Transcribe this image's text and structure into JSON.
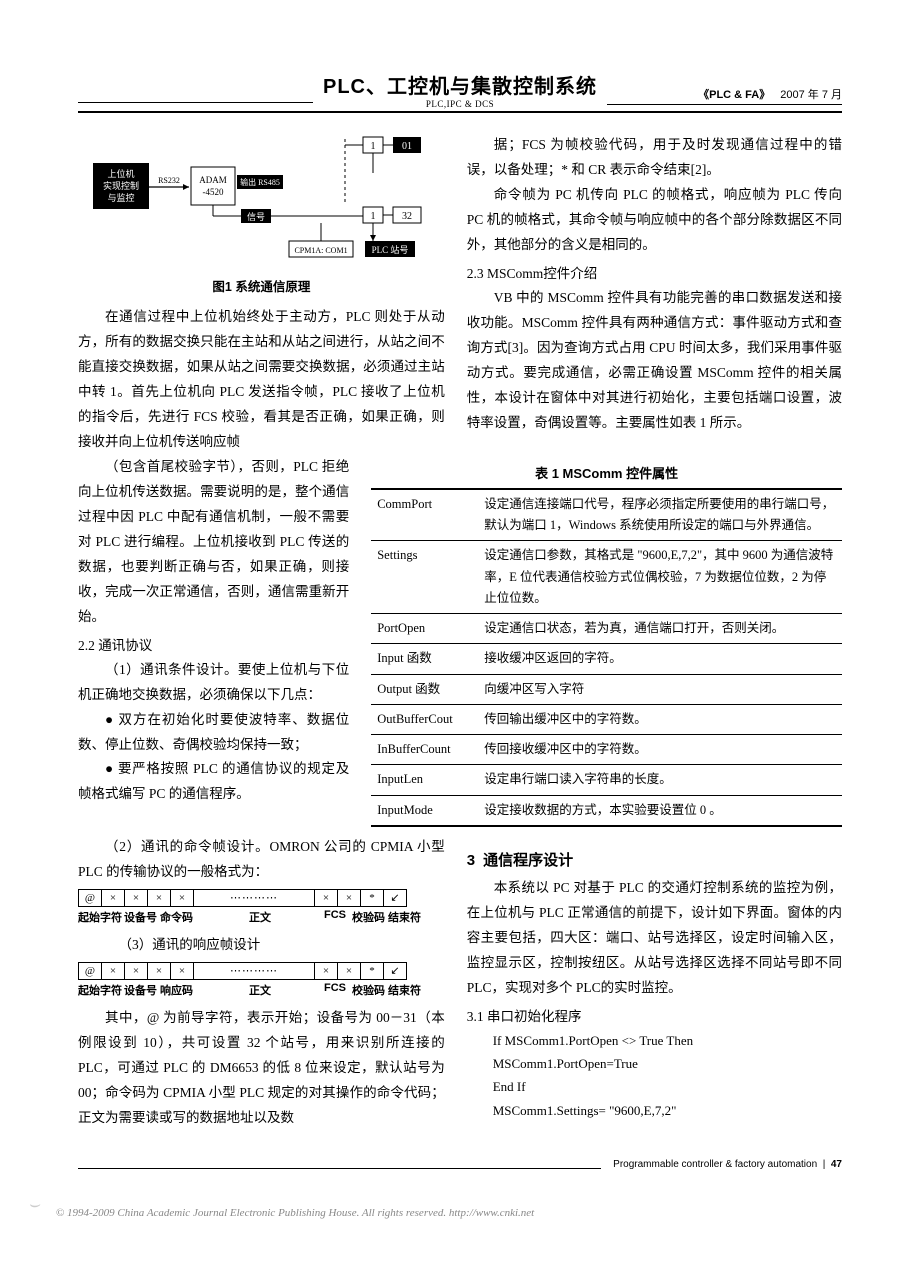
{
  "header": {
    "title_cn": "PLC、工控机与集散控制系统",
    "title_en": "PLC,IPC & DCS",
    "right_tag": "《PLC & FA》",
    "right_date": "2007 年 7 月"
  },
  "figure1": {
    "caption": "图1  系统通信原理",
    "labels": {
      "host": "上位机\n实现控制\n与监控",
      "rs232": "RS232",
      "adam": "ADAM\n-4520",
      "out485": "输出 RS485",
      "signal": "信号",
      "cpm": "CPM1A: COM1",
      "plcno": "PLC 站号",
      "n01": "01",
      "n1a": "1",
      "n1b": "1",
      "n32": "32"
    }
  },
  "left_para_1": "在通信过程中上位机始终处于主动方，PLC 则处于从动方，所有的数据交换只能在主站和从站之间进行，从站之间不能直接交换数据，如果从站之间需要交换数据，必须通过主站中转 1。首先上位机向 PLC 发送指令帧，PLC 接收了上位机的指令后，先进行 FCS 校验，看其是否正确，如果正确，则接收并向上位机传送响应帧",
  "left_para_1b": "（包含首尾校验字节），否则，PLC 拒绝向上位机传送数据。需要说明的是，整个通信过程中因 PLC 中配有通信机制，一般不需要对 PLC 进行编程。上位机接收到 PLC 传送的数据，也要判断正确与否，如果正确，则接收，完成一次正常通信，否则，通信需重新开始。",
  "sec22": "2.2 通讯协议",
  "left_p3": "（1）通讯条件设计。要使上位机与下位机正确地交换数据，必须确保以下几点：",
  "bullet1": "●  双方在初始化时要使波特率、数据位数、停止位数、奇偶校验均保持一致；",
  "bullet2": "●  要严格按照 PLC 的通信协议的规定及帧格式编写 PC 的通信程序。",
  "left_p4": "（2）通讯的命令帧设计。OMRON 公司的 CPMIA 小型 PLC 的传输协议的一般格式为：",
  "frame1": {
    "cells": [
      "@",
      "×",
      "×",
      "×",
      "×",
      "⋯⋯⋯⋯",
      "×",
      "×",
      "*",
      "↙"
    ],
    "labels": [
      "起始字符",
      "设备号",
      "命令码",
      "正文",
      "FCS",
      "校验码",
      "结束符"
    ]
  },
  "left_p5": "（3）通讯的响应帧设计",
  "frame2": {
    "cells": [
      "@",
      "×",
      "×",
      "×",
      "×",
      "⋯⋯⋯⋯",
      "×",
      "×",
      "*",
      "↙"
    ],
    "labels": [
      "起始字符",
      "设备号",
      "响应码",
      "正文",
      "FCS",
      "校验码",
      "结束符"
    ]
  },
  "left_p6": "其中，@ 为前导字符，表示开始；设备号为 00－31（本例限设到 10），共可设置 32 个站号，用来识别所连接的 PLC，可通过 PLC 的 DM6653 的低 8 位来设定，默认站号为 00；命令码为 CPMIA 小型 PLC 规定的对其操作的命令代码；正文为需要读或写的数据地址以及数",
  "right_p1": "据；FCS 为帧校验代码，用于及时发现通信过程中的错误，以备处理；* 和 CR 表示命令结束[2]。",
  "right_p2": "命令帧为 PC 机传向 PLC 的帧格式，响应帧为 PLC 传向 PC 机的帧格式，其命令帧与响应帧中的各个部分除数据区不同外，其他部分的含义是相同的。",
  "sec23": "2.3 MSComm控件介绍",
  "right_p3": "VB 中的 MSComm 控件具有功能完善的串口数据发送和接收功能。MSComm 控件具有两种通信方式：事件驱动方式和查询方式[3]。因为查询方式占用 CPU 时间太多，我们采用事件驱动方式。要完成通信，必需正确设置 MSComm 控件的相关属性，本设计在窗体中对其进行初始化，主要包括端口设置，波特率设置，奇偶设置等。主要属性如表 1 所示。",
  "table1": {
    "title": "表 1    MSComm 控件属性",
    "rows": [
      [
        "CommPort",
        "设定通信连接端口代号，程序必须指定所要使用的串行端口号，默认为端口 1，Windows 系统使用所设定的端口与外界通信。"
      ],
      [
        "Settings",
        "设定通信口参数，其格式是 \"9600,E,7,2\"，其中 9600 为通信波特率，E 位代表通信校验方式位偶校验，7  为数据位位数，2 为停止位位数。"
      ],
      [
        "PortOpen",
        "设定通信口状态，若为真，通信端口打开，否则关闭。"
      ],
      [
        "Input 函数",
        "接收缓冲区返回的字符。"
      ],
      [
        "Output 函数",
        "向缓冲区写入字符"
      ],
      [
        "OutBufferCout",
        "传回输出缓冲区中的字符数。"
      ],
      [
        "InBufferCount",
        "传回接收缓冲区中的字符数。"
      ],
      [
        "InputLen",
        "设定串行端口读入字符串的长度。"
      ],
      [
        "InputMode",
        "设定接收数据的方式，本实验要设置位 0 。"
      ]
    ]
  },
  "sec3": {
    "num": "3",
    "title": "通信程序设计"
  },
  "right_p4": "本系统以 PC 对基于 PLC 的交通灯控制系统的监控为例，在上位机与 PLC 正常通信的前提下，设计如下界面。窗体的内容主要包括，四大区：端口、站号选择区，设定时间输入区，监控显示区，控制按纽区。从站号选择区选择不同站号即不同 PLC，实现对多个 PLC的实时监控。",
  "sec31": "3.1  串口初始化程序",
  "code": [
    "If MSComm1.PortOpen <> True Then",
    "MSComm1.PortOpen=True",
    "End If",
    "MSComm1.Settings= \"9600,E,7,2\""
  ],
  "footer": {
    "text": "Programmable controller & factory automation",
    "page": "47"
  },
  "copyright": "© 1994-2009 China Academic Journal Electronic Publishing House. All rights reserved.   http://www.cnki.net"
}
